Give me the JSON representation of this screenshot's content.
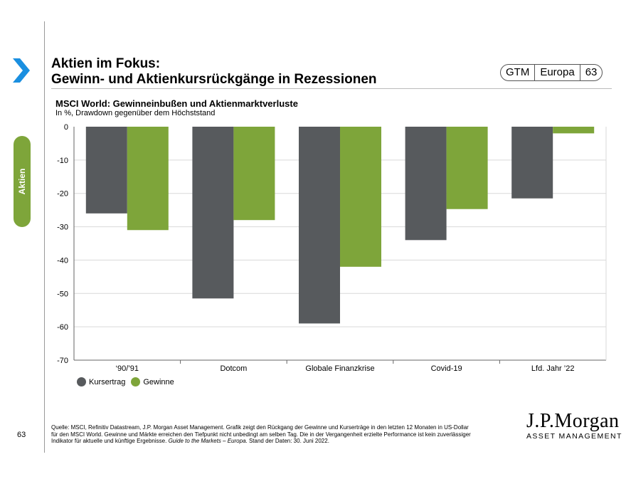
{
  "title_line1": "Aktien im Fokus:",
  "title_line2": "Gewinn- und Aktienkursrückgänge in Rezessionen",
  "badge": [
    "GTM",
    "Europa",
    "63"
  ],
  "side_tab": "Aktien",
  "page_number": "63",
  "chart_data": {
    "type": "bar",
    "title": "MSCI World: Gewinneinbußen und Aktienmarktverluste",
    "subtitle": "In %, Drawdown gegenüber dem Höchststand",
    "categories": [
      "‘90/’91",
      "Dotcom",
      "Globale Finanzkrise",
      "Covid-19",
      "Lfd. Jahr ’22"
    ],
    "series": [
      {
        "name": "Kursertrag",
        "color": "#575a5d",
        "values": [
          -26,
          -51.5,
          -59,
          -34,
          -21.5
        ]
      },
      {
        "name": "Gewinne",
        "color": "#7ea53a",
        "values": [
          -31,
          -28,
          -42,
          -24.7,
          -2
        ]
      }
    ],
    "ylim": [
      -70,
      0
    ],
    "yticks": [
      0,
      -10,
      -20,
      -30,
      -40,
      -50,
      -60,
      -70
    ],
    "grid": true,
    "legend": "bottom-left"
  },
  "source_text": "Quelle: MSCI, Refinitiv Datastream, J.P. Morgan Asset Management. Grafik zeigt den Rückgang der Gewinne und Kurserträge in den letzten 12 Monaten in US-Dollar für den MSCI World. Gewinne und Märkte erreichen den Tiefpunkt nicht unbedingt am selben Tag. Die in der Vergangenheit erzielte Performance ist kein zuverlässiger Indikator für aktuelle und künftige Ergebnisse.",
  "source_italic": "Guide to the Markets – Europa",
  "source_end": ". Stand der Daten: 30. Juni 2022.",
  "logo_main": "J.P.Morgan",
  "logo_sub": "ASSET MANAGEMENT"
}
